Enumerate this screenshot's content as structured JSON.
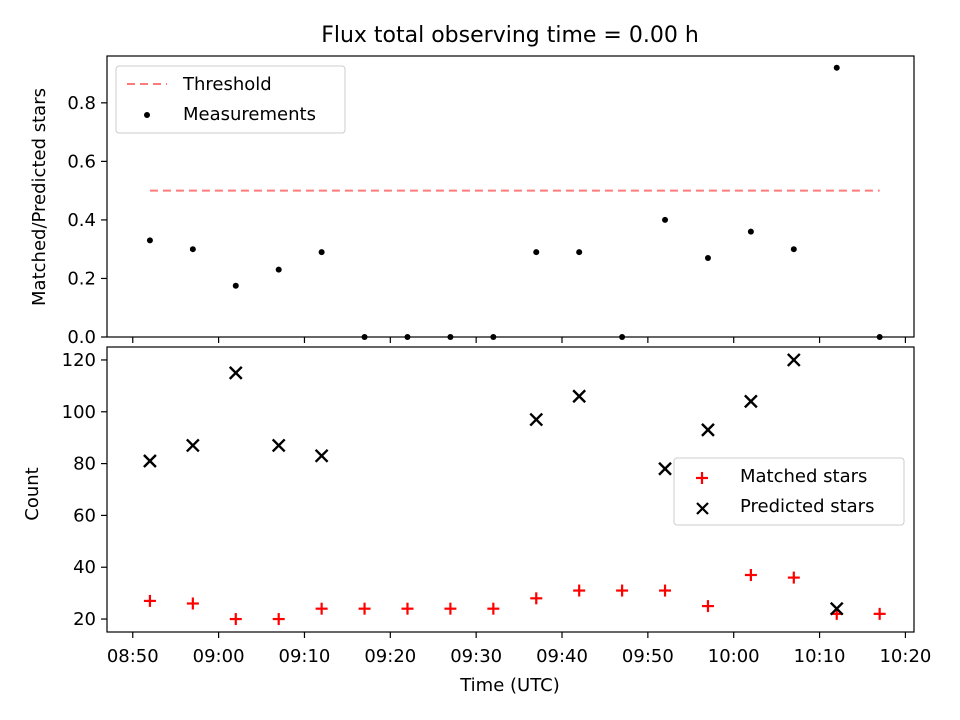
{
  "figure": {
    "title": "Flux total observing time = 0.00 h",
    "colors": {
      "threshold": "#ff7a7a",
      "measurement": "#000000",
      "matched": "#ff0000",
      "predicted": "#000000"
    }
  },
  "chart_data": [
    {
      "type": "scatter",
      "title": "Flux total observing time = 0.00 h",
      "xlabel": "",
      "ylabel": "Matched/Predicted stars",
      "ylim": [
        0,
        0.96
      ],
      "yticks": [
        "0.0",
        "0.2",
        "0.4",
        "0.6",
        "0.8"
      ],
      "xlim": [
        "08:47",
        "10:21"
      ],
      "legend_position": "top-left",
      "grid": false,
      "series": [
        {
          "name": "Threshold",
          "style": "dashed-line",
          "x": [
            "08:52",
            "10:17"
          ],
          "y": [
            0.5,
            0.5
          ]
        },
        {
          "name": "Measurements",
          "style": "dot",
          "x": [
            "08:52",
            "08:57",
            "09:02",
            "09:07",
            "09:12",
            "09:17",
            "09:22",
            "09:27",
            "09:32",
            "09:37",
            "09:42",
            "09:47",
            "09:52",
            "09:57",
            "10:02",
            "10:07",
            "10:12",
            "10:17"
          ],
          "y": [
            0.33,
            0.3,
            0.175,
            0.23,
            0.29,
            0.0,
            0.0,
            0.0,
            0.0,
            0.29,
            0.29,
            0.0,
            0.4,
            0.27,
            0.36,
            0.3,
            0.92,
            0.0
          ]
        }
      ]
    },
    {
      "type": "scatter",
      "xlabel": "Time (UTC)",
      "ylabel": "Count",
      "ylim": [
        15,
        125
      ],
      "yticks": [
        "20",
        "40",
        "60",
        "80",
        "100",
        "120"
      ],
      "xlim": [
        "08:47",
        "10:21"
      ],
      "xticks": [
        "08:50",
        "09:00",
        "09:10",
        "09:20",
        "09:30",
        "09:40",
        "09:50",
        "10:00",
        "10:10",
        "10:20"
      ],
      "legend_position": "center-right",
      "grid": false,
      "series": [
        {
          "name": "Matched stars",
          "style": "plus",
          "x": [
            "08:52",
            "08:57",
            "09:02",
            "09:07",
            "09:12",
            "09:17",
            "09:22",
            "09:27",
            "09:32",
            "09:37",
            "09:42",
            "09:47",
            "09:52",
            "09:57",
            "10:02",
            "10:07",
            "10:12",
            "10:17"
          ],
          "y": [
            27,
            26,
            20,
            20,
            24,
            24,
            24,
            24,
            24,
            28,
            31,
            31,
            31,
            25,
            37,
            36,
            22,
            22
          ]
        },
        {
          "name": "Predicted stars",
          "style": "x",
          "x": [
            "08:52",
            "08:57",
            "09:02",
            "09:07",
            "09:12",
            "09:37",
            "09:42",
            "09:52",
            "09:57",
            "10:02",
            "10:07",
            "10:12"
          ],
          "y": [
            81,
            87,
            115,
            87,
            83,
            97,
            106,
            78,
            93,
            104,
            120,
            24
          ]
        }
      ]
    }
  ]
}
